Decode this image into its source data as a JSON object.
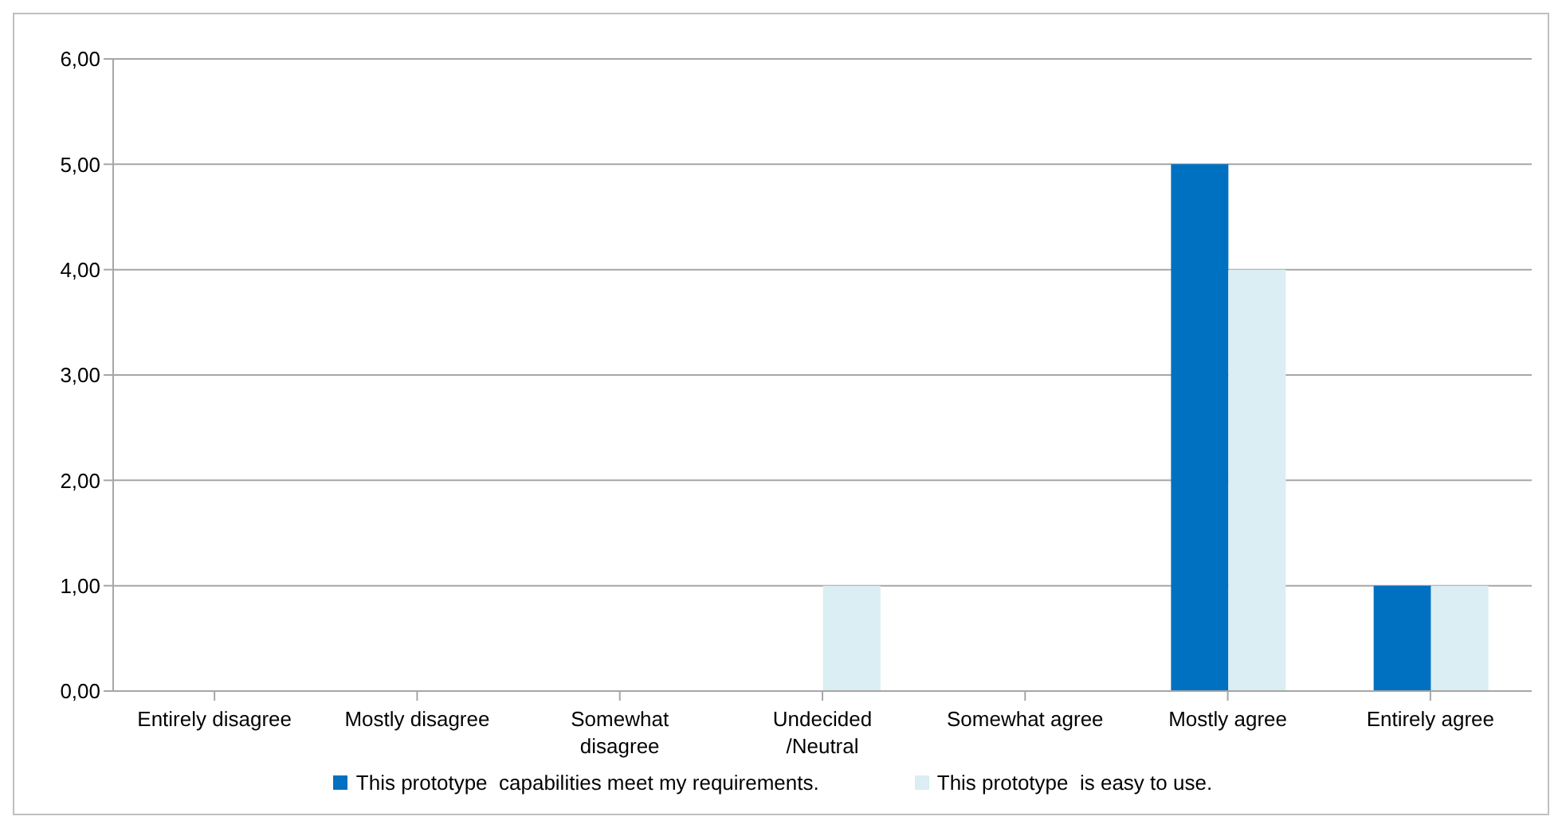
{
  "chart_data": {
    "type": "bar",
    "categories": [
      "Entirely disagree",
      "Mostly disagree",
      "Somewhat disagree",
      "Undecided /Neutral",
      "Somewhat agree",
      "Mostly agree",
      "Entirely agree"
    ],
    "series": [
      {
        "name": "This prototype  capabilities meet my requirements.",
        "color": "#0070c0",
        "values": [
          0,
          0,
          0,
          0,
          0,
          5,
          1
        ]
      },
      {
        "name": "This prototype  is easy to use.",
        "color": "#daeef3",
        "values": [
          0,
          0,
          0,
          1,
          0,
          4,
          1
        ]
      }
    ],
    "ylim": [
      0,
      6
    ],
    "yticks": [
      {
        "value": 0,
        "label": "0,00"
      },
      {
        "value": 1,
        "label": "1,00"
      },
      {
        "value": 2,
        "label": "2,00"
      },
      {
        "value": 3,
        "label": "3,00"
      },
      {
        "value": 4,
        "label": "4,00"
      },
      {
        "value": 5,
        "label": "5,00"
      },
      {
        "value": 6,
        "label": "6,00"
      }
    ],
    "grid": "y",
    "legend": "bottom"
  }
}
